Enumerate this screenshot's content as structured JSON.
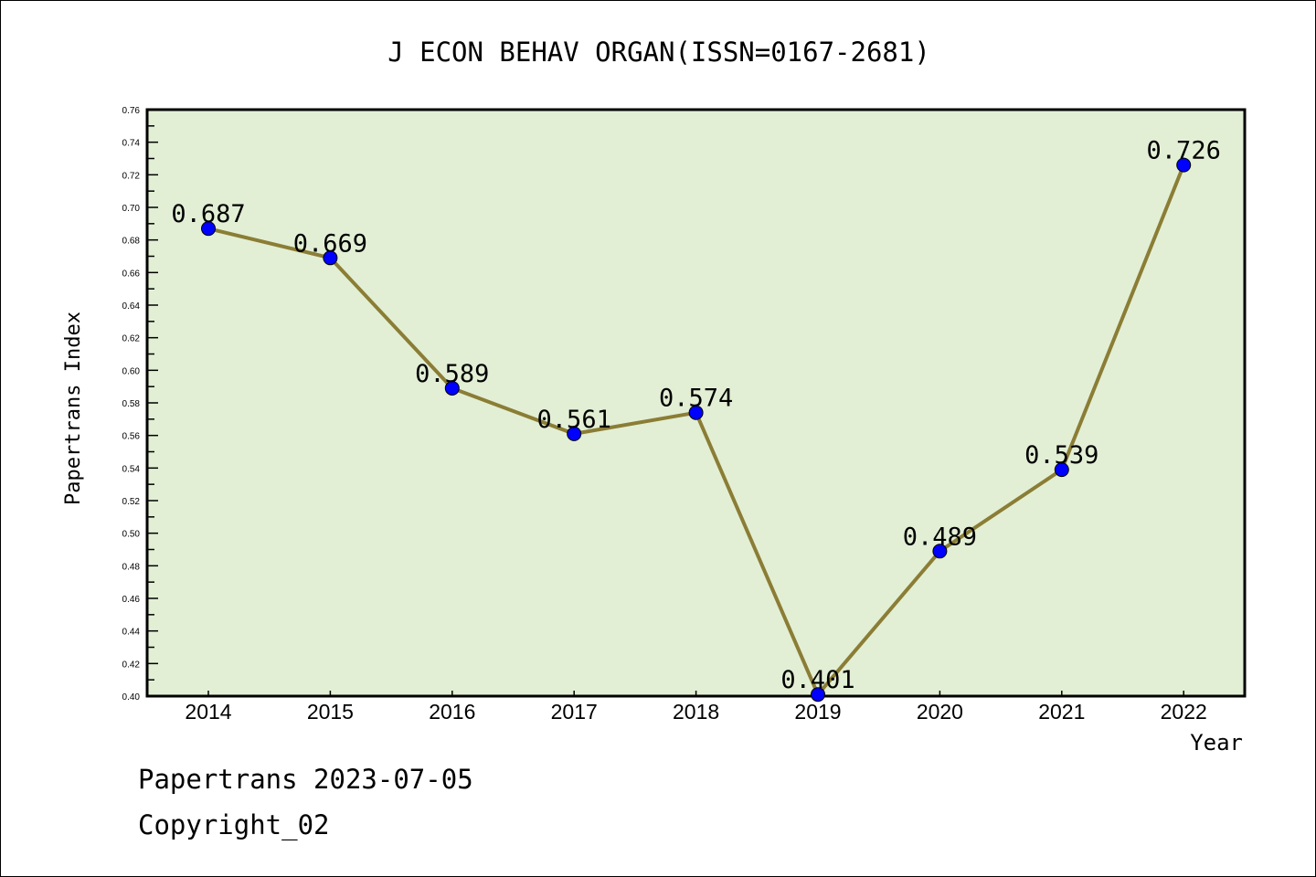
{
  "chart_data": {
    "type": "line",
    "title": "J ECON BEHAV ORGAN(ISSN=0167-2681)",
    "xlabel": "Year",
    "ylabel": "Papertrans Index",
    "categories": [
      "2014",
      "2015",
      "2016",
      "2017",
      "2018",
      "2019",
      "2020",
      "2021",
      "2022"
    ],
    "values": [
      0.687,
      0.669,
      0.589,
      0.561,
      0.574,
      0.401,
      0.489,
      0.539,
      0.726
    ],
    "data_labels": [
      "0.687",
      "0.669",
      "0.589",
      "0.561",
      "0.574",
      "0.401",
      "0.489",
      "0.539",
      "0.726"
    ],
    "ylim": [
      0.4,
      0.76
    ],
    "yticks": [
      "0.40",
      "0.42",
      "0.44",
      "0.46",
      "0.48",
      "0.50",
      "0.52",
      "0.54",
      "0.56",
      "0.58",
      "0.60",
      "0.62",
      "0.64",
      "0.66",
      "0.68",
      "0.70",
      "0.72",
      "0.74",
      "0.76"
    ],
    "grid": false,
    "colors": {
      "line": "#8b7d35",
      "marker": "#0000ff",
      "plot_bg": "#e2efd5"
    }
  },
  "footer": {
    "line1": "Papertrans 2023-07-05",
    "line2": "Copyright_02"
  }
}
